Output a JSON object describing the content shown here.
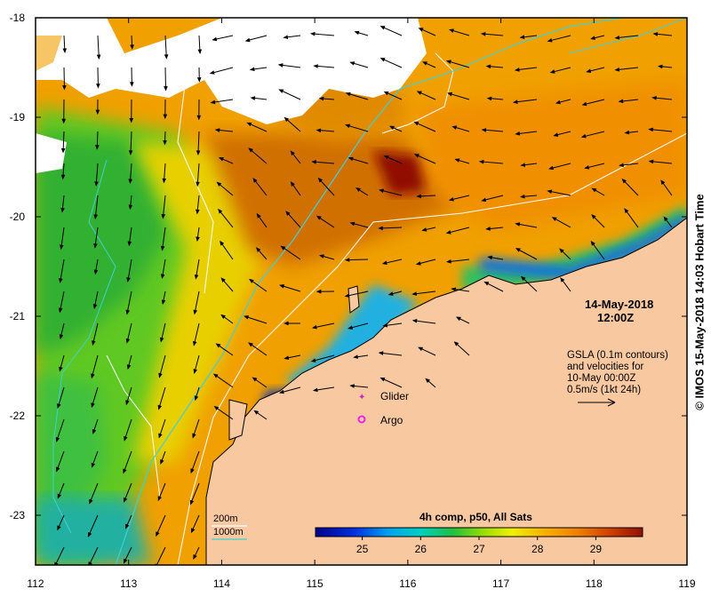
{
  "map": {
    "date": "14-May-2018",
    "time": "12:00Z",
    "gsla_lines": [
      "GSLA (0.1m contours)",
      "and velocities for",
      "10-May 00:00Z",
      "0.5m/s (1kt 24h)"
    ],
    "legend": {
      "glider": "Glider",
      "argo": "Argo",
      "contour_200": "200m",
      "contour_1000": "1000m"
    },
    "colorbar": {
      "title": "4h comp, p50, All Sats",
      "min": 24.2,
      "max": 29.8,
      "ticks": [
        "25",
        "26",
        "27",
        "28",
        "29"
      ],
      "tick_values": [
        25,
        26,
        27,
        28,
        29
      ]
    },
    "credit": "© IMOS 15-May-2018 14:03 Hobart Time",
    "axes": {
      "lon_ticks": [
        "112",
        "113",
        "114",
        "115",
        "116",
        "117",
        "118",
        "119"
      ],
      "lon_values": [
        112,
        113,
        114,
        115,
        116,
        117,
        118,
        119
      ],
      "lat_ticks": [
        "-18",
        "-19",
        "-20",
        "-21",
        "-22",
        "-23"
      ],
      "lat_values": [
        -18,
        -19,
        -20,
        -21,
        -22,
        -23
      ],
      "lon_range": [
        112,
        119
      ],
      "lat_range": [
        -23.5,
        -18
      ]
    },
    "colors": {
      "land": "#f8c8a0",
      "cloud": "#ffffff",
      "contour_200": "#ffffff",
      "contour_1000": "#40d0d0",
      "glider": "#cc22cc",
      "argo": "#ee22ee"
    }
  }
}
